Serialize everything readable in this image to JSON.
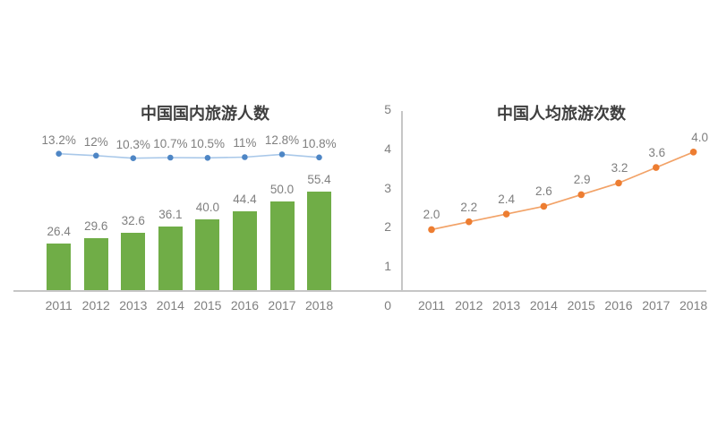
{
  "chart_data": [
    {
      "type": "bar",
      "title": "中国国内旅游人数",
      "categories": [
        "2011",
        "2012",
        "2013",
        "2014",
        "2015",
        "2016",
        "2017",
        "2018"
      ],
      "series": [
        {
          "name": "domestic-tourist-trips-bars",
          "type": "bar",
          "values": [
            26.4,
            29.6,
            32.6,
            36.1,
            40.0,
            44.4,
            50.0,
            55.4
          ],
          "value_labels": [
            "26.4",
            "29.6",
            "32.6",
            "36.1",
            "40.0",
            "44.4",
            "50.0",
            "55.4"
          ],
          "color": "#70AD47"
        },
        {
          "name": "growth-rate-line",
          "type": "line",
          "values": [
            13.2,
            12,
            10.3,
            10.7,
            10.5,
            11,
            12.8,
            10.8
          ],
          "value_labels": [
            "13.2%",
            "12%",
            "10.3%",
            "10.7%",
            "10.5%",
            "11%",
            "12.8%",
            "10.8%"
          ],
          "line_color": "#a9c8e9",
          "marker_color": "#4e86c5"
        }
      ],
      "grid": false,
      "legend": false
    },
    {
      "type": "line",
      "title": "中国人均旅游次数",
      "categories": [
        "2011",
        "2012",
        "2013",
        "2014",
        "2015",
        "2016",
        "2017",
        "2018"
      ],
      "series": [
        {
          "name": "per-capita-trips-line",
          "type": "line",
          "values": [
            2.0,
            2.2,
            2.4,
            2.6,
            2.9,
            3.2,
            3.6,
            4.0
          ],
          "value_labels": [
            "2.0",
            "2.2",
            "2.4",
            "2.6",
            "2.9",
            "3.2",
            "3.6",
            "4.0"
          ],
          "line_color": "#f2a267",
          "marker_color": "#ED7D31"
        }
      ],
      "y_ticks": [
        "0",
        "1",
        "2",
        "3",
        "4",
        "5"
      ],
      "ylim": [
        0,
        5
      ],
      "grid": false,
      "legend": false
    }
  ],
  "style": {
    "label_color": "#7f7f7f",
    "title_color": "#3f3f3f",
    "axis_color": "#c6c6c6",
    "background": "#ffffff"
  }
}
